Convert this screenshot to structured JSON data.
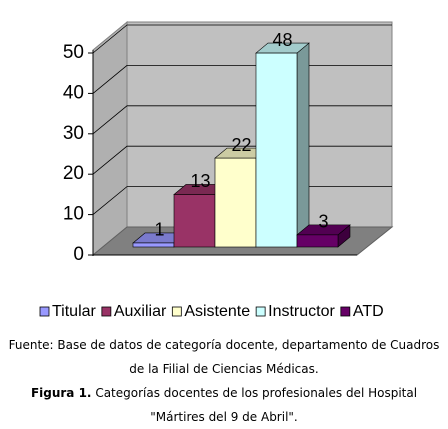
{
  "chart_data": {
    "type": "bar3d",
    "series": [
      {
        "name": "Titular",
        "color": "#9999ff",
        "values": [
          1
        ]
      },
      {
        "name": "Auxiliar",
        "color": "#993366",
        "values": [
          13
        ]
      },
      {
        "name": "Asistente",
        "color": "#ffffcc",
        "values": [
          22
        ]
      },
      {
        "name": "Instructor",
        "color": "#ccffff",
        "values": [
          48
        ]
      },
      {
        "name": "ATD",
        "color": "#660066",
        "values": [
          3
        ]
      }
    ],
    "ylim": [
      0,
      50
    ],
    "yticks": [
      0,
      10,
      20,
      30,
      40,
      50
    ],
    "grid": true,
    "legend": "bottom"
  },
  "source": "Fuente: Base de datos de categoría docente, departamento de Cuadros de la Filial de Ciencias Médicas.",
  "caption_label": "Figura 1.",
  "caption": "Categorías docentes de los profesionales del Hospital \"Mártires del 9 de Abril\"."
}
